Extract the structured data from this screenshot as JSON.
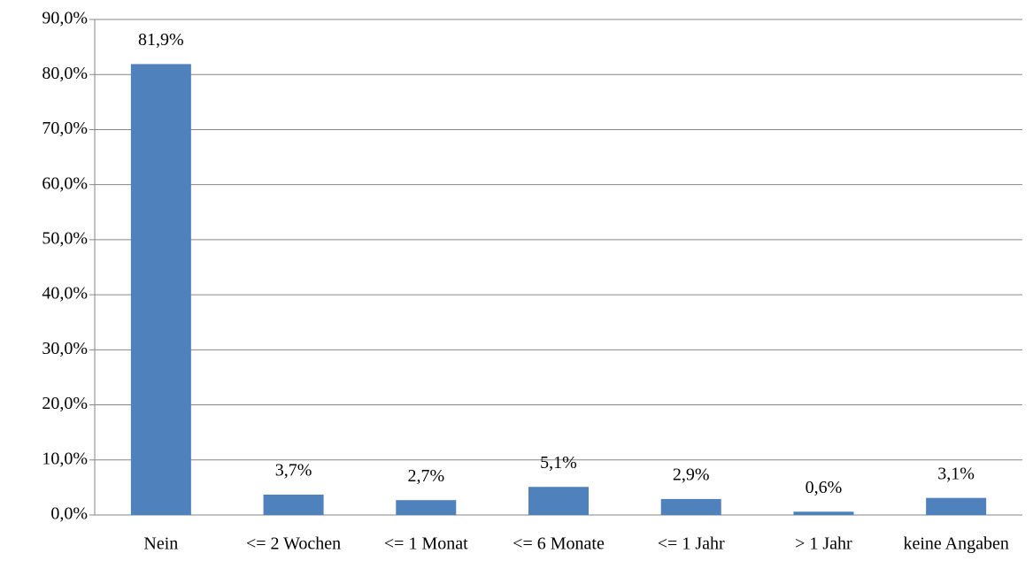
{
  "chart_data": {
    "type": "bar",
    "categories": [
      "Nein",
      "<= 2 Wochen",
      "<= 1 Monat",
      "<= 6 Monate",
      "<= 1 Jahr",
      "> 1 Jahr",
      "keine Angaben"
    ],
    "values": [
      81.9,
      3.7,
      2.7,
      5.1,
      2.9,
      0.6,
      3.1
    ],
    "value_labels": [
      "81,9%",
      "3,7%",
      "2,7%",
      "5,1%",
      "2,9%",
      "0,6%",
      "3,1%"
    ],
    "color": "#4f81bd",
    "ylim": [
      0,
      90
    ],
    "yticks": [
      {
        "value": 0,
        "label": "0,0%"
      },
      {
        "value": 10,
        "label": "10,0%"
      },
      {
        "value": 20,
        "label": "20,0%"
      },
      {
        "value": 30,
        "label": "30,0%"
      },
      {
        "value": 40,
        "label": "40,0%"
      },
      {
        "value": 50,
        "label": "50,0%"
      },
      {
        "value": 60,
        "label": "60,0%"
      },
      {
        "value": 70,
        "label": "70,0%"
      },
      {
        "value": 80,
        "label": "80,0%"
      },
      {
        "value": 90,
        "label": "90,0%"
      }
    ],
    "grid": true
  }
}
